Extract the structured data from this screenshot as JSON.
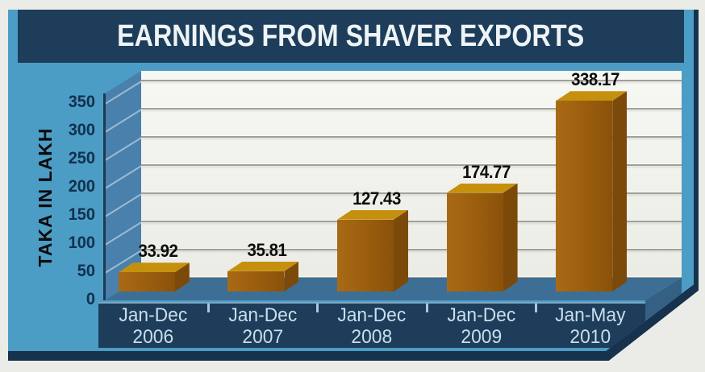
{
  "title": "EARNINGS FROM SHAVER EXPORTS",
  "chart_data": {
    "type": "bar",
    "title": "EARNINGS FROM SHAVER EXPORTS",
    "ylabel": "TAKA IN LAKH",
    "xlabel": "",
    "categories": [
      "Jan-Dec 2006",
      "Jan-Dec 2007",
      "Jan-Dec 2008",
      "Jan-Dec 2009",
      "Jan-May 2010"
    ],
    "category_lines": [
      [
        "Jan-Dec",
        "2006"
      ],
      [
        "Jan-Dec",
        "2007"
      ],
      [
        "Jan-Dec",
        "2008"
      ],
      [
        "Jan-Dec",
        "2009"
      ],
      [
        "Jan-May",
        "2010"
      ]
    ],
    "values": [
      33.92,
      35.81,
      127.43,
      174.77,
      338.17
    ],
    "value_labels": [
      "33.92",
      "35.81",
      "127.43",
      "174.77",
      "338.17"
    ],
    "yticks": [
      0,
      50,
      100,
      150,
      200,
      250,
      300,
      350
    ],
    "ylim": [
      0,
      350
    ],
    "grid": true,
    "legend": false,
    "style": "3d-bar"
  },
  "colors": {
    "page_background": "#ebece7",
    "panel_blue": "#4c9dc6",
    "navy": "#1d3d5a",
    "navy_dark": "#16324d",
    "wall_blue": "#4a80ac",
    "floor_blue": "#3d6f96",
    "plot_background": "#f4f4f0",
    "gridline": "#a19f98",
    "bar_front": "#9a5d0e",
    "bar_top": "#c6900f",
    "bar_side": "#7b4a0b",
    "value_label": "#0c0c0c",
    "xtick_label": "#c9dfed",
    "ytick_label": "#12304d"
  }
}
